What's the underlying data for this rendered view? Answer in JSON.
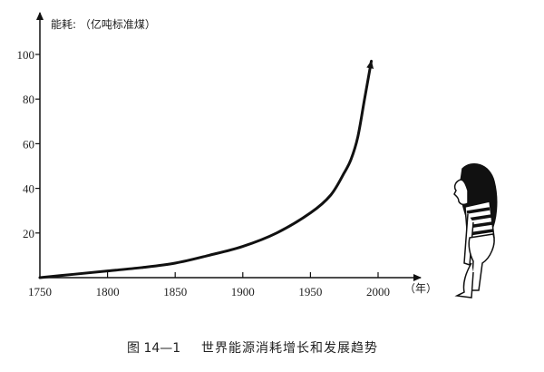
{
  "chart_data": {
    "type": "line",
    "title": "世界能源消耗增长和发展趋势",
    "figure_number": "图 14—1",
    "ylabel": "能耗: （亿吨标准煤）",
    "xlabel": "（年）",
    "xlim": [
      1750,
      2020
    ],
    "ylim": [
      0,
      110
    ],
    "x_ticks": [
      1750,
      1800,
      1850,
      1900,
      1950,
      2000
    ],
    "y_ticks": [
      20,
      40,
      60,
      80,
      100
    ],
    "grid": false,
    "legend": "none",
    "series": [
      {
        "x": [
          1750,
          1775,
          1800,
          1825,
          1850,
          1875,
          1900,
          1925,
          1950,
          1965,
          1975,
          1980,
          1985,
          1990,
          1995
        ],
        "y": [
          0,
          1.5,
          3,
          4.5,
          6.5,
          10,
          14,
          20,
          29,
          37,
          47,
          53,
          63,
          80,
          97
        ],
        "color": "#111111"
      }
    ]
  },
  "illustration": "girl-looking-up-icon"
}
